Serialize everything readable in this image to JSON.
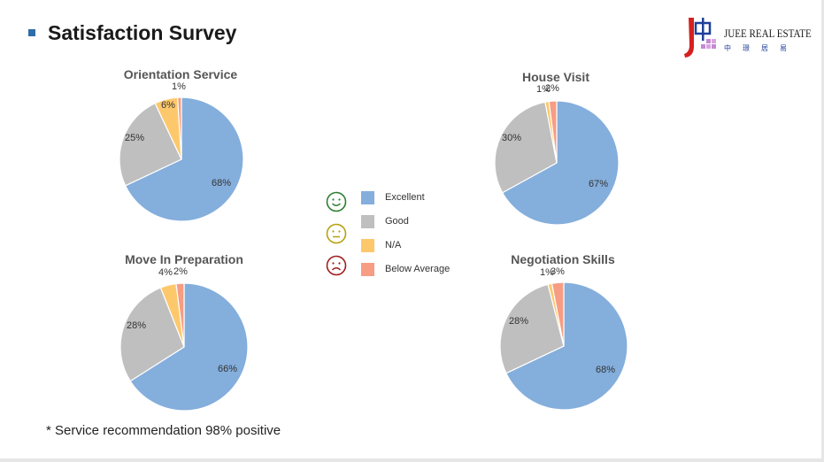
{
  "page": {
    "title": "Satisfaction Survey"
  },
  "logo": {
    "brand": "JUEE REAL ESTATE",
    "chinese": "中璟居易"
  },
  "colors": {
    "Excellent": "#84aedc",
    "Good": "#bfbfbf",
    "N/A": "#fdc86c",
    "Below Average": "#f79d84"
  },
  "legend": {
    "items": [
      {
        "label": "Excellent",
        "face": "smile-icon"
      },
      {
        "label": "Good",
        "face": "neutral-face-icon"
      },
      {
        "label": "N/A",
        "face": "frown-icon"
      },
      {
        "label": "Below Average",
        "face": ""
      }
    ]
  },
  "footnote": "* Service recommendation 98% positive",
  "chart_data": [
    {
      "type": "pie",
      "title": "Orientation Service",
      "categories": [
        "Excellent",
        "Good",
        "N/A",
        "Below Average"
      ],
      "values": [
        68,
        25,
        6,
        1
      ],
      "labels": [
        "68%",
        "25%",
        "6%",
        "1%"
      ]
    },
    {
      "type": "pie",
      "title": "House Visit",
      "categories": [
        "Excellent",
        "Good",
        "N/A",
        "Below Average"
      ],
      "values": [
        67,
        30,
        1,
        2
      ],
      "labels": [
        "67%",
        "30%",
        "1%",
        "2%"
      ]
    },
    {
      "type": "pie",
      "title": "Move In Preparation",
      "categories": [
        "Excellent",
        "Good",
        "N/A",
        "Below Average"
      ],
      "values": [
        66,
        28,
        4,
        2
      ],
      "labels": [
        "66%",
        "28%",
        "4%",
        "2%"
      ]
    },
    {
      "type": "pie",
      "title": "Negotiation Skills",
      "categories": [
        "Excellent",
        "Good",
        "N/A",
        "Below Average"
      ],
      "values": [
        68,
        28,
        1,
        3
      ],
      "labels": [
        "68%",
        "28%",
        "1%",
        "3%"
      ]
    }
  ]
}
